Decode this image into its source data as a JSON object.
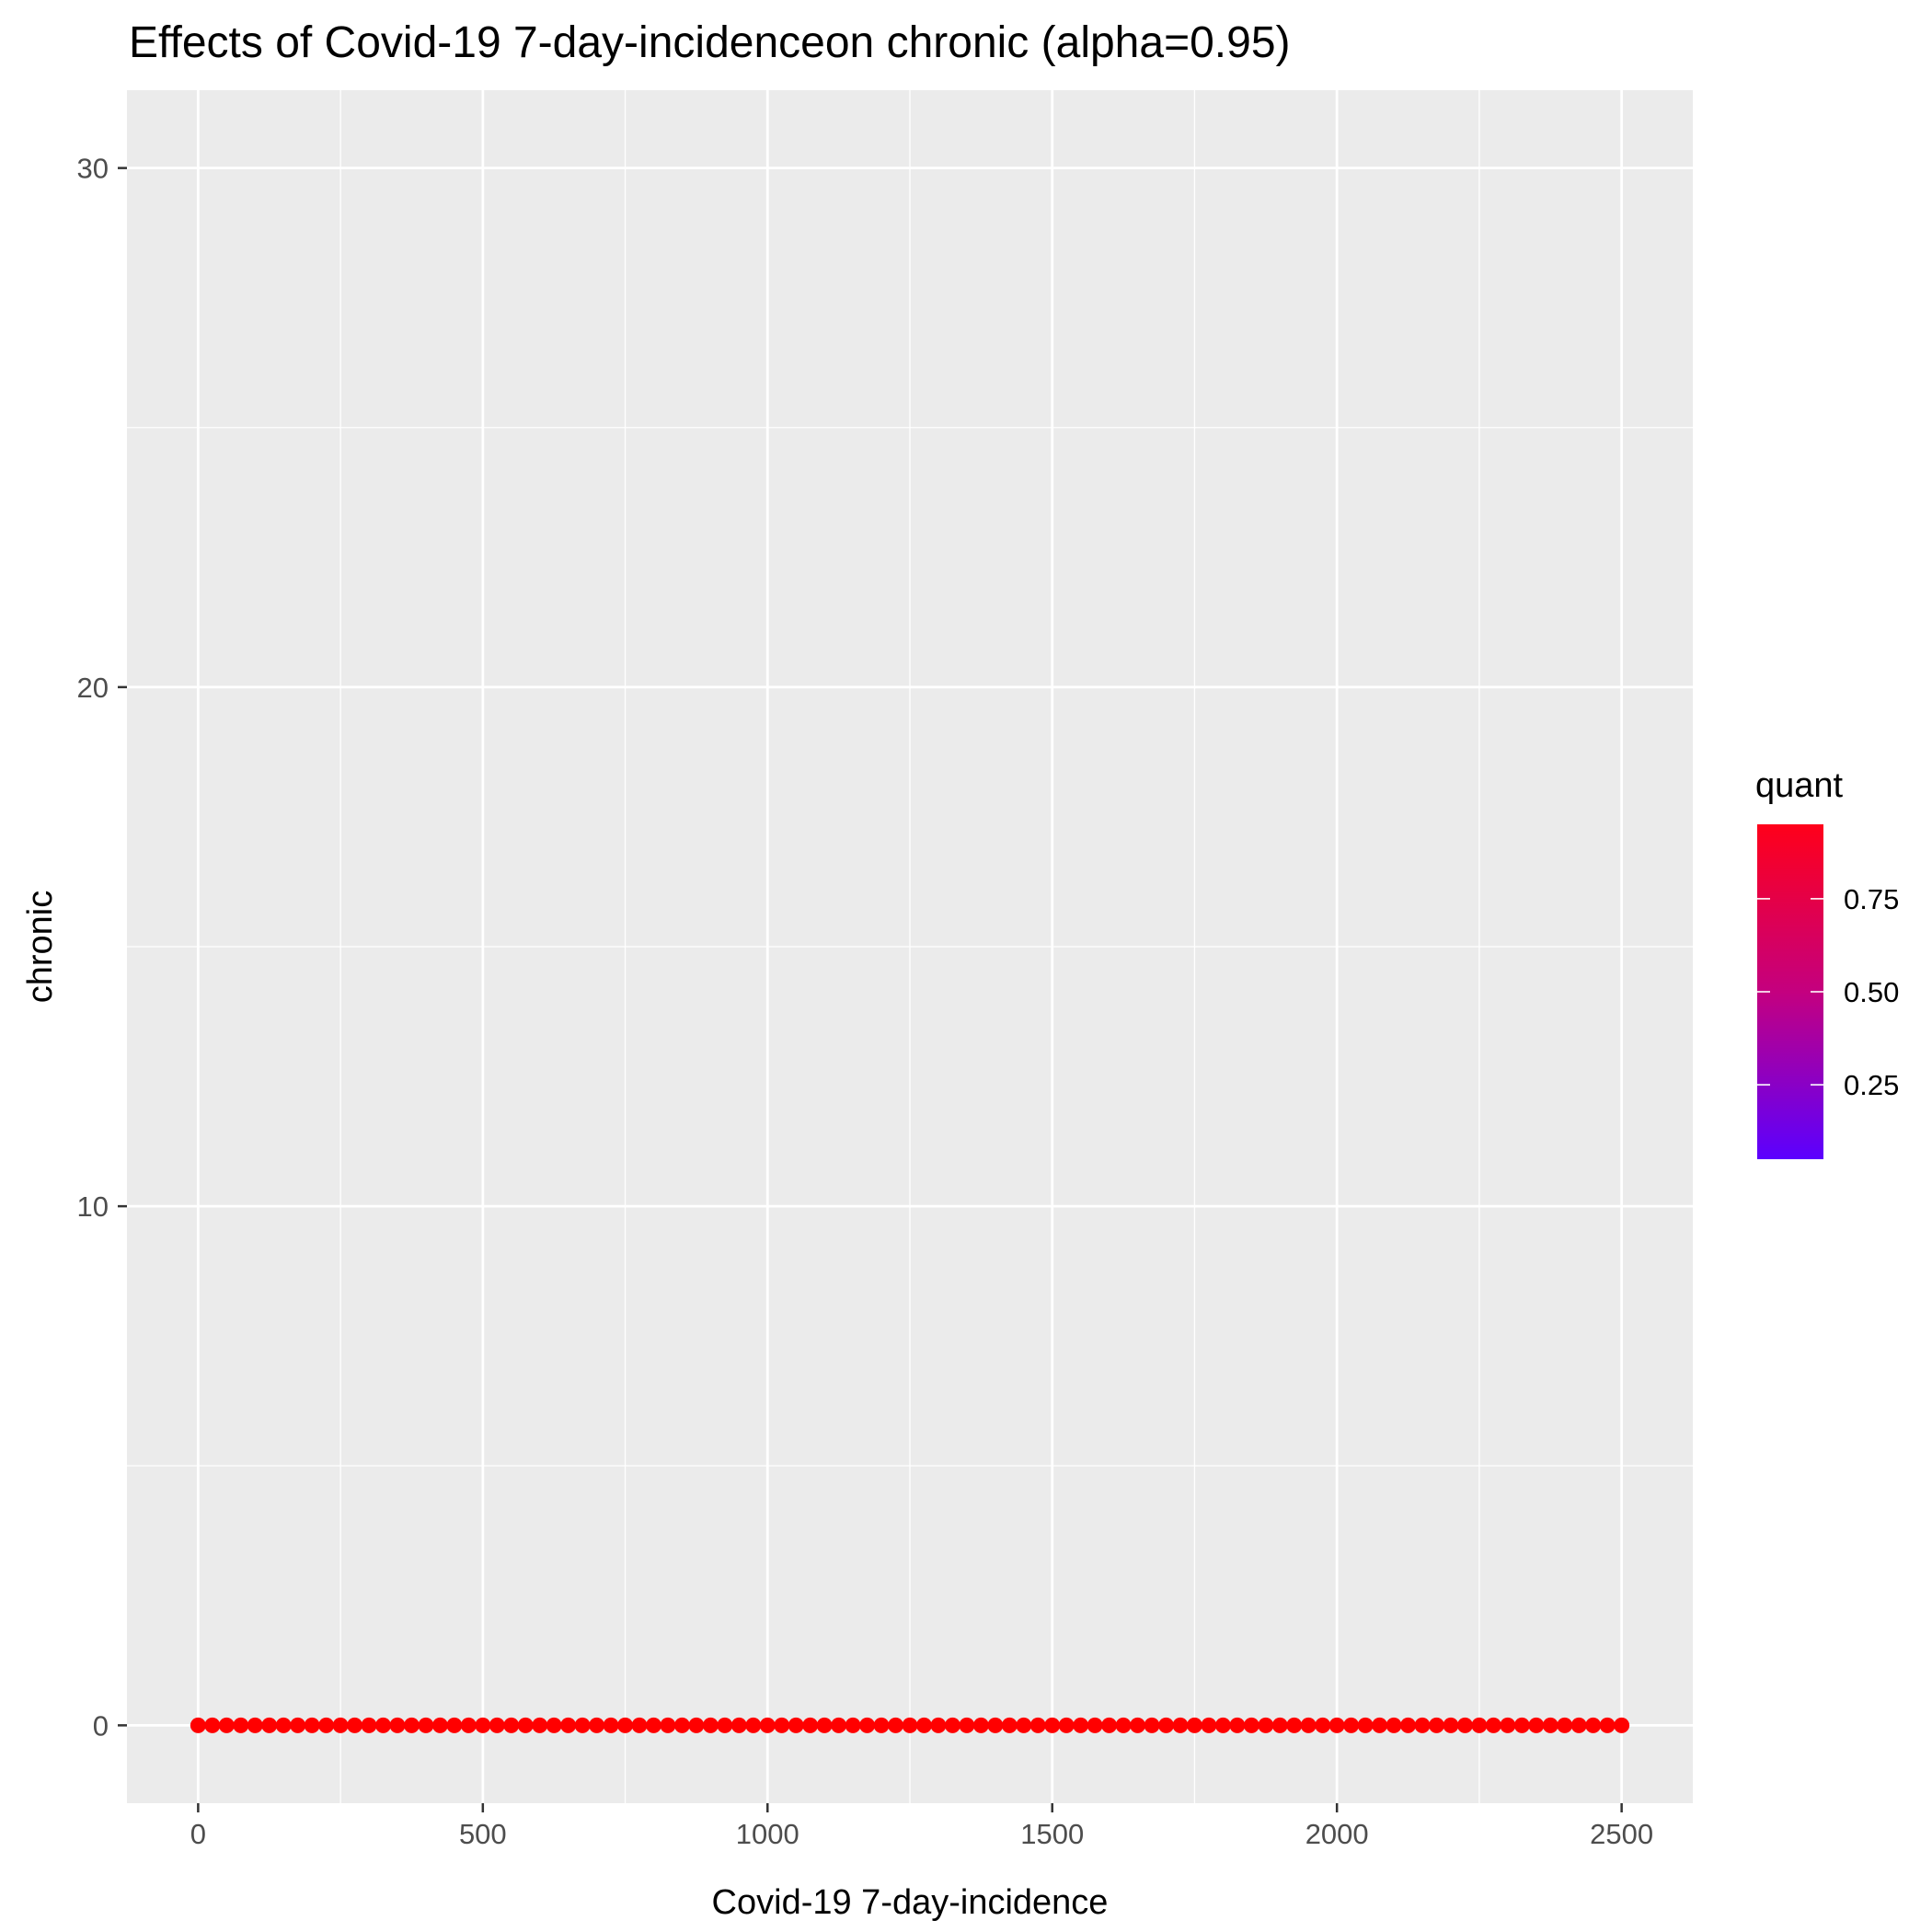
{
  "chart_data": {
    "type": "scatter",
    "title": "Effects of Covid-19 7-day-incidenceon chronic (alpha=0.95)",
    "xlabel": "Covid-19 7-day-incidence",
    "ylabel": "chronic",
    "xlim": [
      -125,
      2625
    ],
    "ylim": [
      -1.5,
      31.5
    ],
    "x_ticks": [
      0,
      500,
      1000,
      1500,
      2000,
      2500
    ],
    "x_tick_labels": [
      "0",
      "500",
      "1000",
      "1500",
      "2000",
      "2500"
    ],
    "y_ticks": [
      0,
      10,
      20,
      30
    ],
    "y_tick_labels": [
      "0",
      "10",
      "20",
      "30"
    ],
    "grid": true,
    "background": "#ebebeb",
    "point_color": "#ff0000",
    "points": {
      "x_start": 0,
      "x_end": 2500,
      "x_step": 25,
      "y": 0,
      "quant": 0.95
    },
    "legend": {
      "title": "quant",
      "position": "right",
      "type": "gradient",
      "low_color": "#5b00ff",
      "high_color": "#ff001a",
      "range": [
        0.05,
        0.95
      ],
      "breaks": [
        0.25,
        0.5,
        0.75
      ],
      "break_labels": [
        "0.25",
        "0.50",
        "0.75"
      ]
    }
  }
}
